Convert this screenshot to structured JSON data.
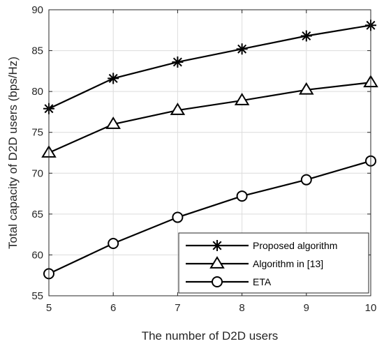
{
  "chart_data": {
    "type": "line",
    "title": "",
    "xlabel": "The number of D2D users",
    "ylabel": "Total capacity of D2D users (bps/Hz)",
    "x": [
      5,
      6,
      7,
      8,
      9,
      10
    ],
    "xlim": [
      5,
      10
    ],
    "ylim": [
      55,
      90
    ],
    "xticks": [
      "5",
      "6",
      "7",
      "8",
      "9",
      "10"
    ],
    "yticks": [
      "55",
      "60",
      "65",
      "70",
      "75",
      "80",
      "85",
      "90"
    ],
    "grid": true,
    "legend_position": "bottom-right",
    "series": [
      {
        "name": "Proposed algorithm",
        "marker": "asterisk",
        "color": "#000000",
        "values": [
          77.9,
          81.6,
          83.6,
          85.2,
          86.8,
          88.1
        ]
      },
      {
        "name": "Algorithm in [13]",
        "marker": "triangle",
        "color": "#000000",
        "values": [
          72.5,
          76.0,
          77.7,
          78.9,
          80.2,
          81.1
        ]
      },
      {
        "name": "ETA",
        "marker": "circle",
        "color": "#000000",
        "values": [
          57.7,
          61.4,
          64.6,
          67.2,
          69.2,
          71.5
        ]
      }
    ]
  }
}
